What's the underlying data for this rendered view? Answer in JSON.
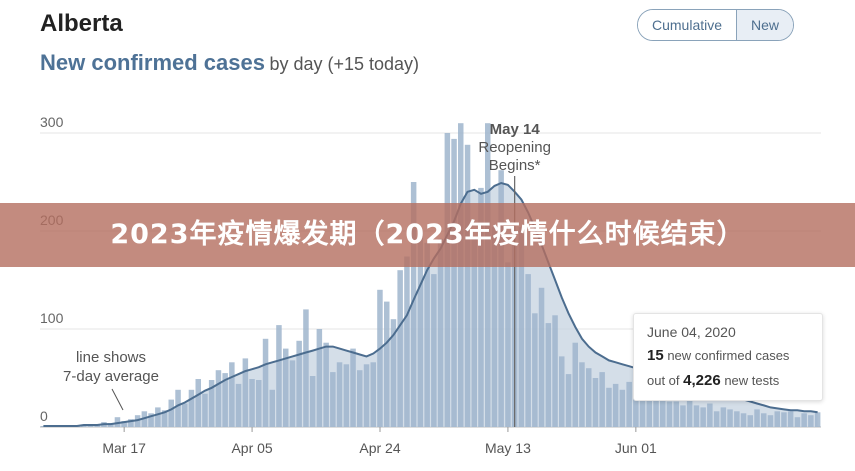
{
  "region": "Alberta",
  "subtitle_main": "New confirmed cases",
  "subtitle_rest": "by day (+15 today)",
  "toggle": {
    "cumulative": "Cumulative",
    "new": "New",
    "active": "new"
  },
  "annotations": {
    "line_note": [
      "line shows",
      "7-day average"
    ],
    "reopening": [
      "May 14",
      "Reopening",
      "Begins*"
    ]
  },
  "tooltip": {
    "date": "June 04, 2020",
    "cases": "15",
    "cases_text": "new confirmed cases",
    "tests_prefix": "out of",
    "tests": "4,226",
    "tests_text": "new tests"
  },
  "banner": "2023年疫情爆发期（2023年疫情什么时候结束）",
  "colors": {
    "bar": "#9fb5cc",
    "line": "#4c6d8f",
    "area": "#c6d3e0",
    "title": "#4e7296"
  },
  "chart_data": {
    "type": "bar",
    "title": "New confirmed cases",
    "x_start": "2020-03-05",
    "x_ticks": [
      "Mar 17",
      "Apr 05",
      "Apr 24",
      "May 13",
      "Jun 01"
    ],
    "y_ticks": [
      "0",
      "100",
      "200",
      "300"
    ],
    "ylim": [
      0,
      320
    ],
    "reopening_date": "May 14",
    "values": [
      1,
      1,
      1,
      1,
      1,
      2,
      2,
      3,
      3,
      5,
      4,
      10,
      6,
      8,
      12,
      16,
      14,
      20,
      17,
      28,
      38,
      24,
      38,
      49,
      34,
      48,
      58,
      55,
      66,
      44,
      70,
      49,
      48,
      90,
      38,
      104,
      80,
      68,
      88,
      120,
      52,
      100,
      86,
      56,
      66,
      64,
      80,
      58,
      64,
      66,
      140,
      128,
      110,
      160,
      174,
      250,
      200,
      188,
      156,
      192,
      300,
      294,
      310,
      288,
      192,
      244,
      310,
      204,
      262,
      168,
      188,
      204,
      156,
      116,
      142,
      106,
      114,
      72,
      54,
      86,
      66,
      60,
      50,
      56,
      40,
      44,
      38,
      46,
      34,
      38,
      34,
      30,
      32,
      26,
      26,
      22,
      28,
      22,
      20,
      24,
      16,
      20,
      18,
      16,
      14,
      12,
      18,
      14,
      12,
      16,
      15,
      16,
      10,
      14,
      12,
      15
    ],
    "average": [
      1,
      1,
      1,
      1,
      1,
      1,
      2,
      2,
      2,
      3,
      3,
      4,
      5,
      6,
      7,
      9,
      11,
      13,
      15,
      18,
      22,
      25,
      29,
      33,
      37,
      40,
      44,
      48,
      51,
      54,
      57,
      59,
      61,
      64,
      66,
      68,
      70,
      72,
      74,
      76,
      78,
      80,
      82,
      82,
      80,
      78,
      76,
      74,
      72,
      75,
      80,
      86,
      94,
      104,
      114,
      130,
      145,
      160,
      172,
      182,
      196,
      210,
      228,
      240,
      242,
      238,
      240,
      246,
      249,
      247,
      240,
      232,
      219,
      203,
      186,
      168,
      150,
      132,
      116,
      102,
      90,
      82,
      76,
      72,
      68,
      66,
      64,
      62,
      60,
      58,
      56,
      54,
      52,
      50,
      48,
      46,
      44,
      42,
      40,
      38,
      36,
      34,
      32,
      30,
      28,
      26,
      24,
      22,
      20,
      19,
      18,
      17,
      17,
      16,
      16,
      15
    ]
  }
}
